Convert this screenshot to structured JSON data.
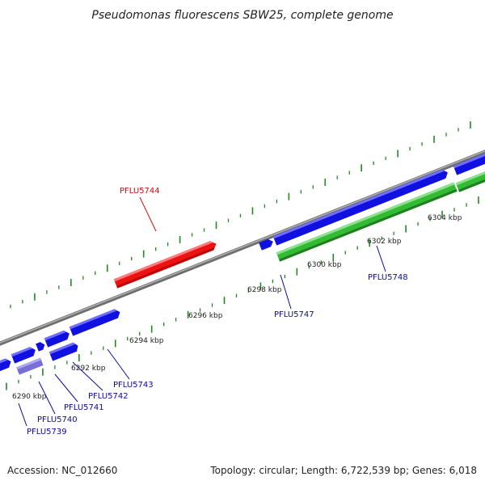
{
  "title": "Pseudomonas fluorescens SBW25, complete genome",
  "footer": {
    "accession": "Accession: NC_012660",
    "summary": "Topology: circular; Length: 6,722,539 bp; Genes: 6,018"
  },
  "ticks": [
    {
      "label": "6290 kbp"
    },
    {
      "label": "6292 kbp"
    },
    {
      "label": "6294 kbp"
    },
    {
      "label": "6296 kbp"
    },
    {
      "label": "6298 kbp"
    },
    {
      "label": "6300 kbp"
    },
    {
      "label": "6302 kbp"
    },
    {
      "label": "6304 kbp"
    }
  ],
  "genes": [
    {
      "label": "PFLU5739",
      "strand": "forward"
    },
    {
      "label": "PFLU5740",
      "strand": "forward"
    },
    {
      "label": "PFLU5741",
      "strand": "forward"
    },
    {
      "label": "PFLU5742",
      "strand": "forward"
    },
    {
      "label": "PFLU5743",
      "strand": "forward"
    },
    {
      "label": "PFLU5744",
      "strand": "reverse"
    },
    {
      "label": "PFLU5747",
      "strand": "forward"
    },
    {
      "label": "PFLU5748",
      "strand": "forward"
    }
  ],
  "colors": {
    "forward_cds": "#1010e0",
    "reverse_cds": "#ee1111",
    "gene_track": "#33bb33",
    "rna_feature": "#7a6fd6",
    "backbone": "#888888",
    "tick_marks": "#228822",
    "label_forward": "#0a0a9a",
    "label_reverse": "#cc1111"
  }
}
